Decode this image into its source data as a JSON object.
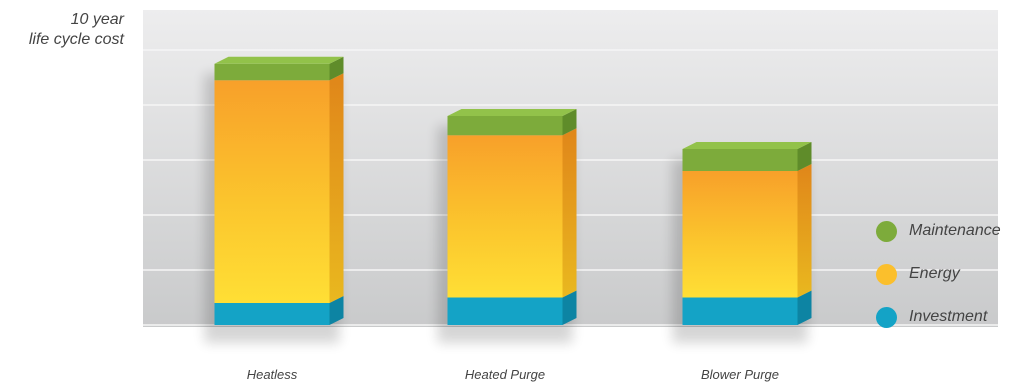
{
  "chart_data": {
    "type": "bar",
    "stacked": true,
    "ylabel": [
      "10 year",
      "life cycle cost"
    ],
    "ylim": [
      0,
      100
    ],
    "grid": true,
    "legend_position": "right",
    "categories": [
      "Heatless",
      "Heated Purge",
      "Blower Purge"
    ],
    "series": [
      {
        "name": "Investment",
        "color": "#14a3c6",
        "values": [
          8,
          10,
          10
        ]
      },
      {
        "name": "Energy",
        "color": "#fbbf2c",
        "values": [
          81,
          59,
          46
        ]
      },
      {
        "name": "Maintenance",
        "color": "#7dab3b",
        "values": [
          6,
          7,
          8
        ]
      }
    ],
    "legend": [
      "Maintenance",
      "Energy",
      "Investment"
    ]
  }
}
